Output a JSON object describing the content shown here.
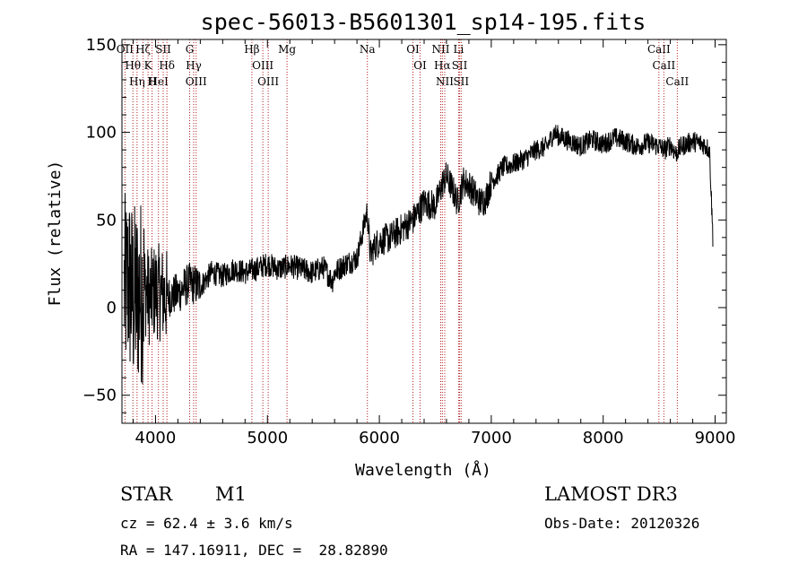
{
  "chart_data": {
    "type": "line",
    "title": "spec-56013-B5601301_sp14-195.fits",
    "xlabel": "Wavelength (Å)",
    "ylabel": "Flux (relative)",
    "xlim": [
      3700,
      9100
    ],
    "ylim": [
      -66,
      153
    ],
    "xticks": [
      4000,
      5000,
      6000,
      7000,
      8000,
      9000
    ],
    "yticks": [
      -50,
      0,
      50,
      100,
      150
    ],
    "series": [
      {
        "name": "flux",
        "x": [
          3720,
          3760,
          3800,
          3850,
          3900,
          3950,
          4000,
          4100,
          4200,
          4300,
          4400,
          4500,
          4600,
          4700,
          4800,
          4900,
          5000,
          5100,
          5200,
          5300,
          5400,
          5500,
          5580,
          5600,
          5700,
          5800,
          5890,
          5920,
          5960,
          6000,
          6100,
          6200,
          6300,
          6400,
          6500,
          6560,
          6600,
          6650,
          6700,
          6750,
          6800,
          6850,
          6900,
          6950,
          7000,
          7050,
          7100,
          7200,
          7300,
          7400,
          7500,
          7560,
          7600,
          7700,
          7800,
          7900,
          8000,
          8100,
          8200,
          8300,
          8400,
          8500,
          8550,
          8600,
          8650,
          8700,
          8800,
          8900,
          8950,
          8980
        ],
        "y": [
          10,
          15,
          5,
          8,
          12,
          5,
          10,
          6,
          8,
          14,
          12,
          20,
          18,
          22,
          20,
          22,
          25,
          22,
          24,
          22,
          20,
          23,
          15,
          20,
          25,
          28,
          55,
          30,
          35,
          38,
          40,
          45,
          50,
          60,
          58,
          70,
          75,
          68,
          60,
          72,
          70,
          65,
          60,
          62,
          72,
          75,
          80,
          82,
          85,
          90,
          92,
          100,
          98,
          95,
          92,
          96,
          93,
          97,
          95,
          92,
          94,
          92,
          90,
          93,
          88,
          92,
          95,
          93,
          90,
          40
        ]
      }
    ],
    "spectral_lines": [
      {
        "wavelength": 3727,
        "label": "OII"
      },
      {
        "wavelength": 3798,
        "label": "Hθ"
      },
      {
        "wavelength": 3835,
        "label": "Hη"
      },
      {
        "wavelength": 3889,
        "label": "Hζ"
      },
      {
        "wavelength": 3933,
        "label": "K"
      },
      {
        "wavelength": 3969,
        "label": "H"
      },
      {
        "wavelength": 4026,
        "label": "HeI"
      },
      {
        "wavelength": 4069,
        "label": "SII"
      },
      {
        "wavelength": 4102,
        "label": "Hδ"
      },
      {
        "wavelength": 4305,
        "label": "G"
      },
      {
        "wavelength": 4341,
        "label": "Hγ"
      },
      {
        "wavelength": 4363,
        "label": "OIII"
      },
      {
        "wavelength": 4861,
        "label": "Hβ"
      },
      {
        "wavelength": 4959,
        "label": "OIII"
      },
      {
        "wavelength": 5007,
        "label": "OIII"
      },
      {
        "wavelength": 5175,
        "label": "Mg"
      },
      {
        "wavelength": 5893,
        "label": "Na"
      },
      {
        "wavelength": 6300,
        "label": "OI"
      },
      {
        "wavelength": 6364,
        "label": "OI"
      },
      {
        "wavelength": 6548,
        "label": "NII"
      },
      {
        "wavelength": 6563,
        "label": "Hα"
      },
      {
        "wavelength": 6584,
        "label": "NII"
      },
      {
        "wavelength": 6708,
        "label": "Li"
      },
      {
        "wavelength": 6717,
        "label": "SII"
      },
      {
        "wavelength": 6731,
        "label": "SII"
      },
      {
        "wavelength": 8498,
        "label": "CaII"
      },
      {
        "wavelength": 8542,
        "label": "CaII"
      },
      {
        "wavelength": 8662,
        "label": "CaII"
      }
    ]
  },
  "info": {
    "class_label": "STAR",
    "subclass": "M1",
    "survey": "LAMOST DR3",
    "cz_line": "cz = 62.4 ± 3.6 km/s",
    "obs_date": "Obs-Date: 20120326",
    "coords": "RA = 147.16911, DEC =  28.82890"
  }
}
